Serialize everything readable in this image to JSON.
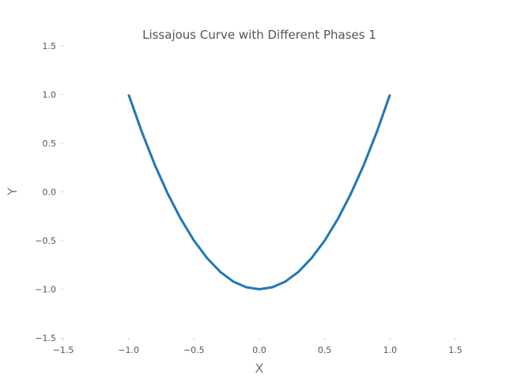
{
  "chart_data": {
    "type": "line",
    "title": "Lissajous Curve with Different Phases 1",
    "xlabel": "X",
    "ylabel": "Y",
    "xlim": [
      -1.5,
      1.5
    ],
    "ylim": [
      -1.5,
      1.5
    ],
    "xticks": [
      -1.5,
      -1.0,
      -0.5,
      0.0,
      0.5,
      1.0,
      1.5
    ],
    "xtick_labels": [
      "−1.5",
      "−1.0",
      "−0.5",
      "0.0",
      "0.5",
      "1.0",
      "1.5"
    ],
    "yticks": [
      -1.5,
      -1.0,
      -0.5,
      0.0,
      0.5,
      1.0,
      1.5
    ],
    "ytick_labels": [
      "−1.5",
      "−1.0",
      "−0.5",
      "0.0",
      "0.5",
      "1.0",
      "1.5"
    ],
    "grid": false,
    "series": [
      {
        "color": "#1f77b4",
        "x": [
          -1.0,
          -0.9,
          -0.8,
          -0.7,
          -0.6,
          -0.5,
          -0.4,
          -0.3,
          -0.2,
          -0.1,
          0.0,
          0.1,
          0.2,
          0.3,
          0.4,
          0.5,
          0.6,
          0.7,
          0.8,
          0.9,
          1.0
        ],
        "y": [
          1.0,
          0.62,
          0.28,
          -0.02,
          -0.28,
          -0.5,
          -0.68,
          -0.82,
          -0.92,
          -0.98,
          -1.0,
          -0.98,
          -0.92,
          -0.82,
          -0.68,
          -0.5,
          -0.28,
          -0.02,
          0.28,
          0.62,
          1.0
        ]
      }
    ]
  }
}
